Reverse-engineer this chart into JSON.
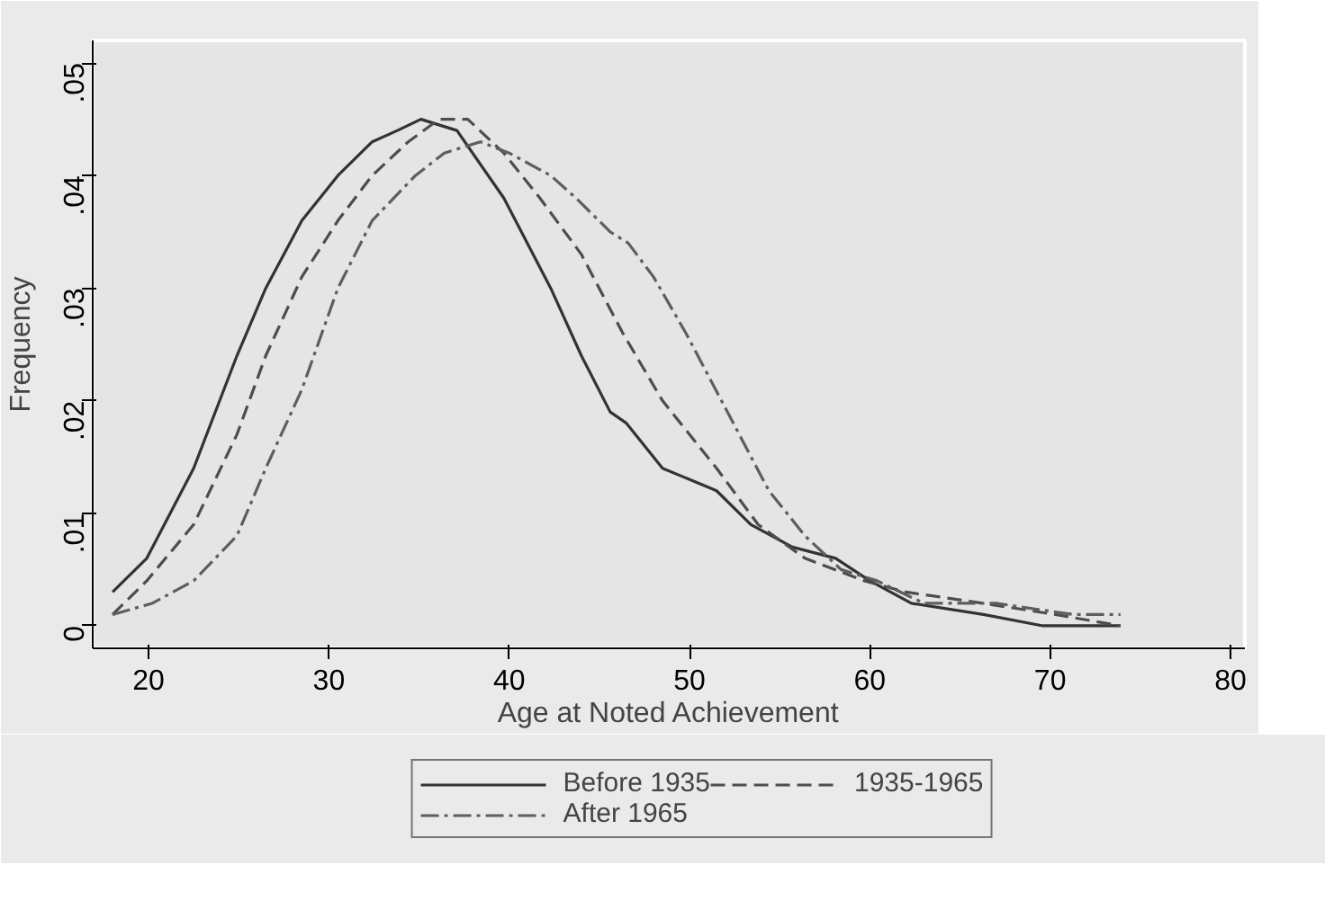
{
  "chart_data": {
    "type": "line",
    "xlabel": "Age at Noted Achievement",
    "ylabel": "Frequency",
    "xlim": [
      16.9,
      80.8
    ],
    "ylim": [
      -0.002,
      0.052
    ],
    "xticks": [
      20,
      30,
      40,
      50,
      60,
      70,
      80
    ],
    "yticks": [
      {
        "value": 0,
        "label": "0"
      },
      {
        "value": 0.01,
        "label": ".01"
      },
      {
        "value": 0.02,
        "label": ".02"
      },
      {
        "value": 0.03,
        "label": ".03"
      },
      {
        "value": 0.04,
        "label": ".04"
      },
      {
        "value": 0.05,
        "label": ".05"
      }
    ],
    "legend": "bottom",
    "series": [
      {
        "name": "Before 1935",
        "color": "#333333",
        "line_style": "solid",
        "x": [
          18.0,
          19.9,
          22.5,
          24.9,
          26.5,
          28.5,
          30.5,
          32.4,
          33.8,
          35.1,
          37.1,
          39.7,
          42.3,
          44.0,
          45.6,
          46.5,
          48.5,
          51.5,
          53.4,
          55.7,
          58.1,
          60.0,
          62.3,
          66.3,
          69.6,
          73.9
        ],
        "values": [
          0.003,
          0.006,
          0.014,
          0.024,
          0.03,
          0.036,
          0.04,
          0.043,
          0.044,
          0.045,
          0.044,
          0.038,
          0.03,
          0.024,
          0.019,
          0.018,
          0.014,
          0.012,
          0.009,
          0.007,
          0.006,
          0.004,
          0.002,
          0.001,
          0.0,
          0.0
        ]
      },
      {
        "name": "1935-1965",
        "color": "#4d4d4d",
        "line_style": "dashed",
        "x": [
          18.0,
          19.9,
          22.5,
          24.9,
          26.5,
          28.5,
          30.5,
          32.4,
          34.4,
          36.1,
          37.7,
          39.7,
          41.7,
          44.0,
          46.3,
          48.5,
          51.5,
          53.8,
          56.4,
          59.7,
          62.0,
          66.3,
          70.3,
          73.9
        ],
        "values": [
          0.001,
          0.004,
          0.009,
          0.017,
          0.024,
          0.031,
          0.036,
          0.04,
          0.043,
          0.045,
          0.045,
          0.042,
          0.038,
          0.033,
          0.026,
          0.02,
          0.014,
          0.009,
          0.006,
          0.004,
          0.003,
          0.002,
          0.001,
          0.0
        ]
      },
      {
        "name": "After 1965",
        "color": "#5e5e5e",
        "line_style": "dashdot",
        "x": [
          18.0,
          20.2,
          22.5,
          24.9,
          26.5,
          28.5,
          30.5,
          32.4,
          34.8,
          36.4,
          38.4,
          40.0,
          42.3,
          43.7,
          45.6,
          46.6,
          48.0,
          49.8,
          52.1,
          54.4,
          56.4,
          58.4,
          60.4,
          63.0,
          67.0,
          71.3,
          73.9
        ],
        "values": [
          0.001,
          0.002,
          0.004,
          0.008,
          0.014,
          0.021,
          0.03,
          0.036,
          0.04,
          0.042,
          0.043,
          0.042,
          0.04,
          0.038,
          0.035,
          0.034,
          0.031,
          0.026,
          0.019,
          0.012,
          0.008,
          0.005,
          0.004,
          0.002,
          0.002,
          0.001,
          0.001
        ]
      }
    ]
  }
}
